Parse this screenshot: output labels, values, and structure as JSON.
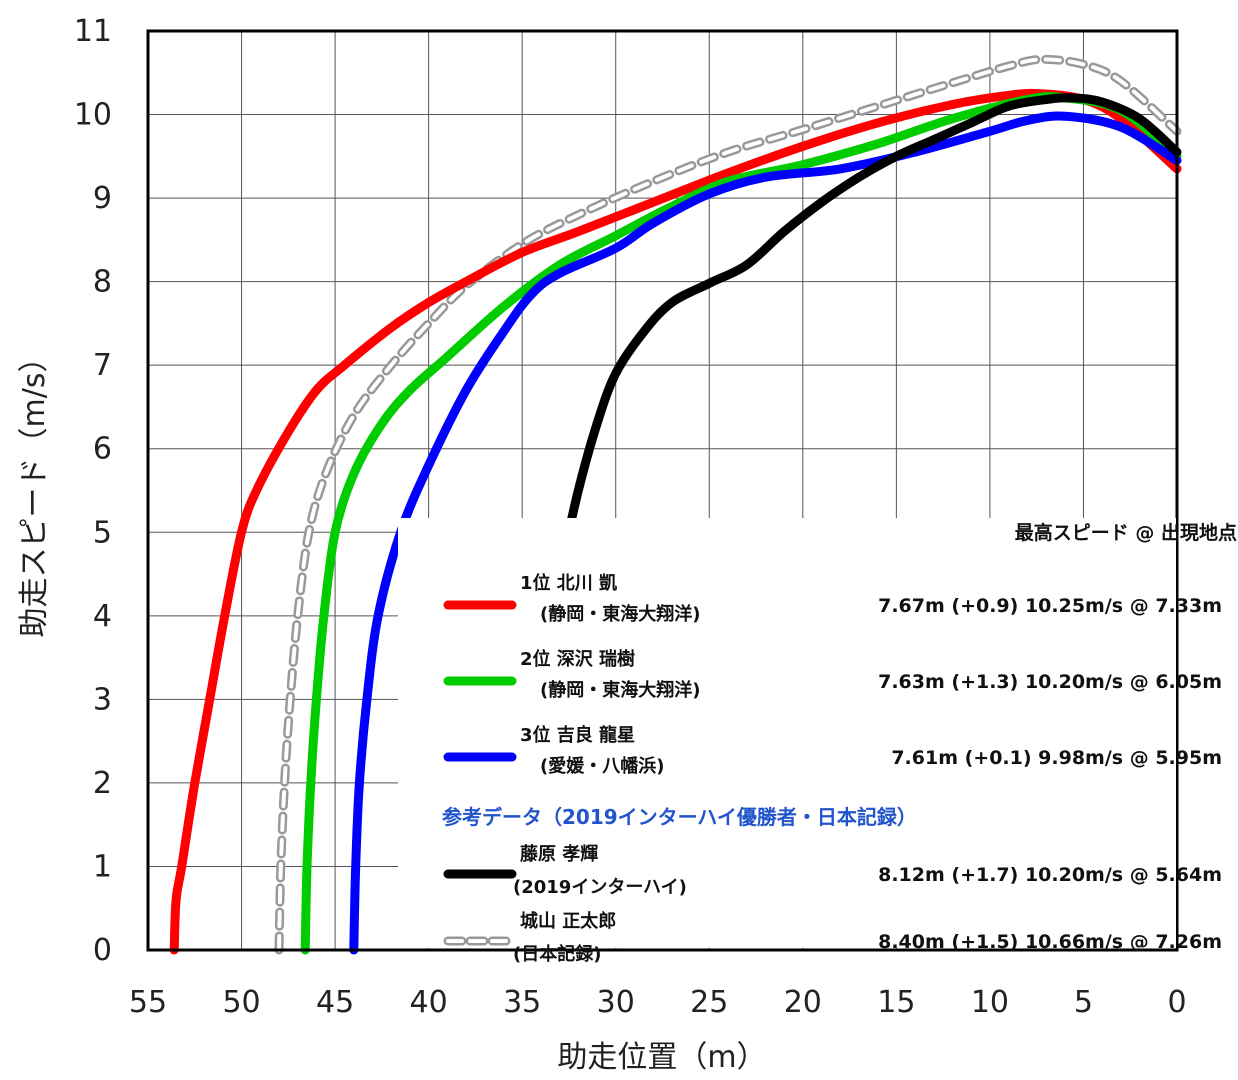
{
  "chart_data": {
    "type": "line",
    "xlabel": "助走位置（m）",
    "ylabel": "助走スピード（m/s）",
    "xlim": [
      55,
      0
    ],
    "ylim": [
      0,
      11
    ],
    "x_reversed": true,
    "xticks": [
      "55",
      "50",
      "45",
      "40",
      "35",
      "30",
      "25",
      "20",
      "15",
      "10",
      "5",
      "0"
    ],
    "yticks": [
      "0",
      "1",
      "2",
      "3",
      "4",
      "5",
      "6",
      "7",
      "8",
      "9",
      "10",
      "11"
    ],
    "grid": true,
    "legend_position": "bottom-right",
    "legend_header": "最高スピード @ 出現地点",
    "reference_label": "参考データ（2019インターハイ優勝者・日本記録）",
    "series": [
      {
        "name_line1": "1位 北川 凱",
        "name_line2": "(静岡・東海大翔洋)",
        "stat": "7.67m (+0.9) 10.25m/s @ 7.33m",
        "color": "#ff0000",
        "dashed": false,
        "x": [
          53.6,
          53.5,
          53.2,
          52.5,
          51.7,
          50.9,
          50.0,
          49.2,
          47.5,
          46.0,
          44.5,
          42.0,
          40.0,
          38.0,
          35.0,
          32.0,
          28.0,
          24.0,
          20.0,
          16.0,
          12.0,
          9.0,
          7.33,
          5.0,
          3.0,
          0.0
        ],
        "y": [
          0.0,
          0.6,
          1.0,
          2.0,
          3.0,
          4.0,
          5.0,
          5.5,
          6.2,
          6.7,
          7.0,
          7.45,
          7.75,
          8.0,
          8.35,
          8.6,
          8.95,
          9.3,
          9.62,
          9.9,
          10.12,
          10.23,
          10.25,
          10.18,
          9.95,
          9.35
        ]
      },
      {
        "name_line1": "2位 深沢 瑞樹",
        "name_line2": "(静岡・東海大翔洋)",
        "stat": "7.63m (+1.3) 10.20m/s @ 6.05m",
        "color": "#00cc00",
        "dashed": false,
        "x": [
          46.6,
          46.5,
          46.3,
          46.0,
          45.6,
          45.0,
          44.0,
          42.5,
          41.0,
          39.0,
          36.0,
          33.0,
          30.0,
          27.0,
          24.0,
          20.0,
          16.0,
          12.0,
          8.0,
          6.05,
          3.0,
          0.0
        ],
        "y": [
          0.0,
          1.0,
          2.0,
          3.0,
          4.0,
          5.0,
          5.7,
          6.3,
          6.7,
          7.1,
          7.7,
          8.2,
          8.55,
          8.9,
          9.2,
          9.4,
          9.65,
          9.95,
          10.18,
          10.2,
          10.05,
          9.5
        ]
      },
      {
        "name_line1": "3位 吉良 龍星",
        "name_line2": "(愛媛・八幡浜)",
        "stat": "7.61m (+0.1)   9.98m/s @ 5.95m",
        "color": "#0000ff",
        "dashed": false,
        "x": [
          44.0,
          43.9,
          43.7,
          43.3,
          42.7,
          41.5,
          40.0,
          38.0,
          36.0,
          34.5,
          33.0,
          30.0,
          28.0,
          25.0,
          22.0,
          18.0,
          14.0,
          10.0,
          8.0,
          5.95,
          3.0,
          0.0
        ],
        "y": [
          0.0,
          1.0,
          2.0,
          3.0,
          4.0,
          5.0,
          5.8,
          6.7,
          7.4,
          7.85,
          8.1,
          8.4,
          8.7,
          9.05,
          9.25,
          9.35,
          9.55,
          9.8,
          9.93,
          9.98,
          9.85,
          9.45
        ]
      },
      {
        "name_line1": "藤原 孝輝",
        "name_line2": "(2019インターハイ)",
        "stat": "8.12m (+1.7) 10.20m/s @ 5.64m",
        "color": "#000000",
        "dashed": false,
        "x": [
          32.8,
          32.0,
          31.0,
          30.0,
          28.5,
          27.0,
          25.0,
          23.0,
          21.0,
          19.0,
          17.0,
          15.0,
          13.0,
          11.0,
          9.0,
          7.0,
          5.64,
          4.0,
          2.0,
          0.0
        ],
        "y": [
          4.7,
          5.5,
          6.3,
          6.9,
          7.4,
          7.75,
          7.98,
          8.2,
          8.6,
          8.95,
          9.25,
          9.5,
          9.7,
          9.9,
          10.1,
          10.18,
          10.2,
          10.15,
          9.95,
          9.55
        ]
      },
      {
        "name_line1": "城山 正太郎",
        "name_line2": "(日本記録)",
        "stat": "8.40m (+1.5) 10.66m/s @ 7.26m",
        "color": "#999999",
        "dashed": true,
        "x": [
          48.0,
          47.9,
          47.7,
          47.4,
          47.0,
          46.4,
          45.5,
          44.0,
          42.0,
          40.0,
          38.0,
          35.0,
          32.0,
          28.0,
          24.0,
          20.0,
          16.0,
          12.0,
          9.0,
          7.26,
          5.0,
          3.0,
          0.0
        ],
        "y": [
          0.0,
          1.0,
          2.0,
          3.0,
          4.0,
          5.0,
          5.7,
          6.4,
          7.0,
          7.5,
          7.95,
          8.45,
          8.8,
          9.2,
          9.55,
          9.82,
          10.1,
          10.38,
          10.58,
          10.66,
          10.6,
          10.4,
          9.8
        ]
      }
    ]
  }
}
